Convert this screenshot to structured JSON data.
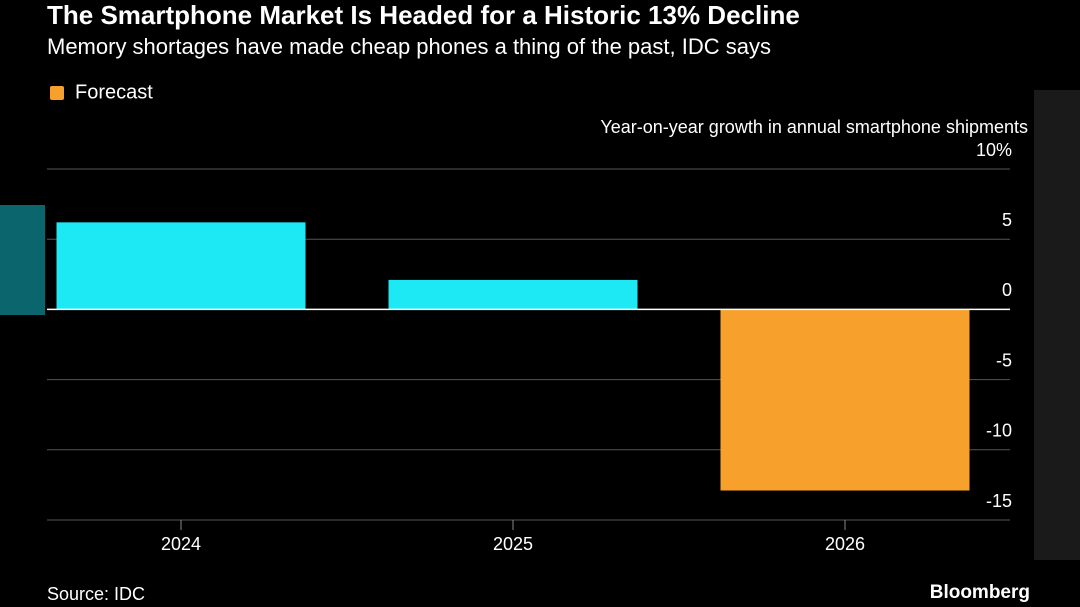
{
  "chart_data": {
    "type": "bar",
    "title": "The Smartphone Market Is Headed for a Historic 13% Decline",
    "subtitle": "Memory shortages have made cheap phones a thing of the past, IDC says",
    "legend": {
      "label": "Forecast",
      "color": "#f7a12c"
    },
    "y_axis_label": "Year-on-year growth in annual smartphone shipments",
    "categories": [
      "2024",
      "2025",
      "2026"
    ],
    "values": [
      6.2,
      2.1,
      -12.9
    ],
    "colors": [
      "#1de9f5",
      "#1de9f5",
      "#f7a12c"
    ],
    "ylim": [
      -15,
      10
    ],
    "yticks": [
      {
        "value": 10,
        "label": "10%"
      },
      5,
      0,
      -5,
      -10,
      -15
    ],
    "grid": true,
    "source": "Source: IDC",
    "brand": "Bloomberg"
  }
}
